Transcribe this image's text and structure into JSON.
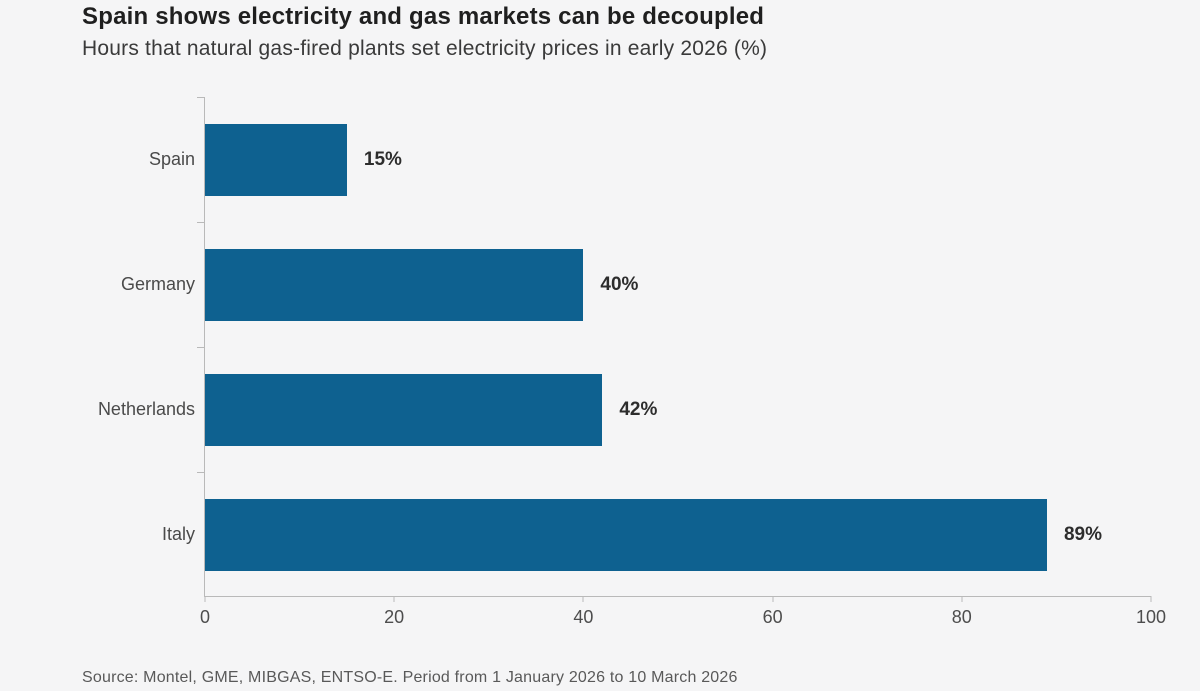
{
  "title": "Spain shows electricity and gas markets can be decoupled",
  "subtitle": "Hours that natural gas-fired plants set electricity prices in early 2026 (%)",
  "source": "Source: Montel, GME, MIBGAS, ENTSO-E. Period from 1 January 2026 to 10 March 2026",
  "colors": {
    "bar": "#0e6190",
    "background": "#f5f5f6",
    "axis": "#b9b9b9"
  },
  "chart_data": {
    "type": "bar",
    "orientation": "horizontal",
    "title": "Spain shows electricity and gas markets can be decoupled",
    "subtitle": "Hours that natural gas-fired plants set electricity prices in early 2026 (%)",
    "categories": [
      "Spain",
      "Germany",
      "Netherlands",
      "Italy"
    ],
    "values": [
      15,
      40,
      42,
      89
    ],
    "value_labels": [
      "15%",
      "40%",
      "42%",
      "89%"
    ],
    "xlabel": "",
    "ylabel": "",
    "xlim": [
      0,
      100
    ],
    "x_ticks": [
      "0",
      "20",
      "40",
      "60",
      "80",
      "100"
    ],
    "grid": false,
    "legend": false,
    "bar_color": "#0e6190"
  }
}
